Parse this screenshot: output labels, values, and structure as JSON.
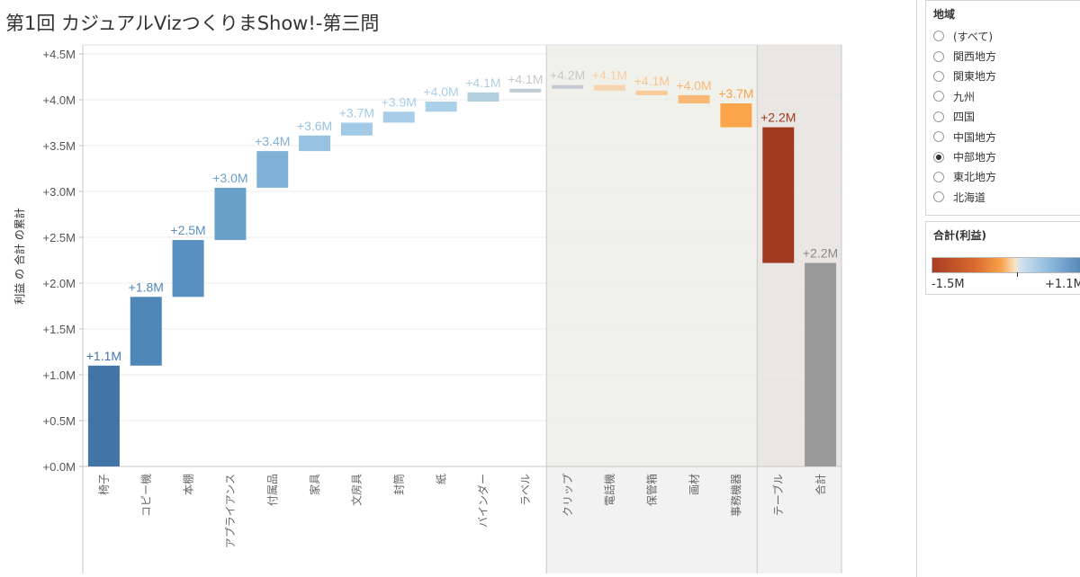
{
  "title": "第1回 カジュアルVizつくりまShow!-第三問",
  "filter": {
    "title": "地域",
    "options": [
      {
        "label": "(すべて)",
        "selected": false
      },
      {
        "label": "関西地方",
        "selected": false
      },
      {
        "label": "関東地方",
        "selected": false
      },
      {
        "label": "九州",
        "selected": false
      },
      {
        "label": "四国",
        "selected": false
      },
      {
        "label": "中国地方",
        "selected": false
      },
      {
        "label": "中部地方",
        "selected": true
      },
      {
        "label": "東北地方",
        "selected": false
      },
      {
        "label": "北海道",
        "selected": false
      }
    ]
  },
  "legend": {
    "title": "合計(利益)",
    "min_label": "-1.5M",
    "max_label": "+1.1M",
    "colors": [
      "#a83e22",
      "#d86a2f",
      "#f9a24b",
      "#f8e4c4",
      "#cfe2f1",
      "#8fbbdd",
      "#4c80b2"
    ]
  },
  "chart_data": {
    "type": "bar",
    "subtype": "waterfall",
    "ylabel": "利益 の 合計 の累計",
    "ylim": [
      0,
      4.5
    ],
    "yticks": [
      0,
      0.5,
      1.0,
      1.5,
      2.0,
      2.5,
      3.0,
      3.5,
      4.0,
      4.5
    ],
    "ytick_labels": [
      "+0.0M",
      "+0.5M",
      "+1.0M",
      "+1.5M",
      "+2.0M",
      "+2.5M",
      "+3.0M",
      "+3.5M",
      "+4.0M",
      "+4.5M"
    ],
    "unit": "M",
    "grid": true,
    "groups": [
      {
        "name": "profit",
        "range": [
          0,
          11
        ]
      },
      {
        "name": "loss",
        "range": [
          11,
          16
        ]
      },
      {
        "name": "total",
        "range": [
          16,
          17
        ]
      }
    ],
    "categories": [
      "椅子",
      "コピー機",
      "本棚",
      "アプライアンス",
      "付属品",
      "家具",
      "文房具",
      "封筒",
      "紙",
      "バインダー",
      "ラベル",
      "クリップ",
      "電話機",
      "保管箱",
      "画材",
      "事務機器",
      "テーブル",
      "合計"
    ],
    "bars": [
      {
        "category": "椅子",
        "start": 0.0,
        "end": 1.1,
        "label": "+1.1M",
        "color": "#4274a8",
        "label_color": "#4274a8"
      },
      {
        "category": "コピー機",
        "start": 1.1,
        "end": 1.85,
        "label": "+1.8M",
        "color": "#4f86b8",
        "label_color": "#4f86b8"
      },
      {
        "category": "本棚",
        "start": 1.85,
        "end": 2.47,
        "label": "+2.5M",
        "color": "#5890c1",
        "label_color": "#5890c1"
      },
      {
        "category": "アプライアンス",
        "start": 2.47,
        "end": 3.04,
        "label": "+3.0M",
        "color": "#69a0ca",
        "label_color": "#69a0ca"
      },
      {
        "category": "付属品",
        "start": 3.04,
        "end": 3.44,
        "label": "+3.4M",
        "color": "#80b1d7",
        "label_color": "#80b1d7"
      },
      {
        "category": "家具",
        "start": 3.44,
        "end": 3.61,
        "label": "+3.6M",
        "color": "#97c2e2",
        "label_color": "#97c2e2"
      },
      {
        "category": "文房具",
        "start": 3.61,
        "end": 3.75,
        "label": "+3.7M",
        "color": "#a2cae6",
        "label_color": "#a2cae6"
      },
      {
        "category": "封筒",
        "start": 3.75,
        "end": 3.87,
        "label": "+3.9M",
        "color": "#a7cde8",
        "label_color": "#a7cde8"
      },
      {
        "category": "紙",
        "start": 3.87,
        "end": 3.98,
        "label": "+4.0M",
        "color": "#abd0ea",
        "label_color": "#abd0ea"
      },
      {
        "category": "バインダー",
        "start": 3.98,
        "end": 4.08,
        "label": "+4.1M",
        "color": "#b2cfe0",
        "label_color": "#b2cfe0"
      },
      {
        "category": "ラベル",
        "start": 4.08,
        "end": 4.12,
        "label": "+4.1M",
        "color": "#bfcbd3",
        "label_color": "#c3c9ce"
      },
      {
        "category": "クリップ",
        "start": 4.12,
        "end": 4.16,
        "label": "+4.2M",
        "color": "#c4cacf",
        "label_color": "#c8c8c8"
      },
      {
        "category": "電話機",
        "start": 4.16,
        "end": 4.1,
        "label": "+4.1M",
        "color": "#f7d4b0",
        "label_color": "#f9cda5"
      },
      {
        "category": "保管箱",
        "start": 4.1,
        "end": 4.05,
        "label": "+4.1M",
        "color": "#f8ca99",
        "label_color": "#f8c592"
      },
      {
        "category": "画材",
        "start": 4.05,
        "end": 3.96,
        "label": "+4.0M",
        "color": "#fab877",
        "label_color": "#f8b878"
      },
      {
        "category": "事務機器",
        "start": 3.96,
        "end": 3.7,
        "label": "+3.7M",
        "color": "#fba44a",
        "label_color": "#f9a24b"
      },
      {
        "category": "テーブル",
        "start": 3.7,
        "end": 2.22,
        "label": "+2.2M",
        "color": "#a03a1f",
        "label_color": "#a03a1f"
      },
      {
        "category": "合計",
        "start": 0.0,
        "end": 2.22,
        "label": "+2.2M",
        "color": "#9a9a9a",
        "label_color": "#8a8a8a"
      }
    ]
  }
}
